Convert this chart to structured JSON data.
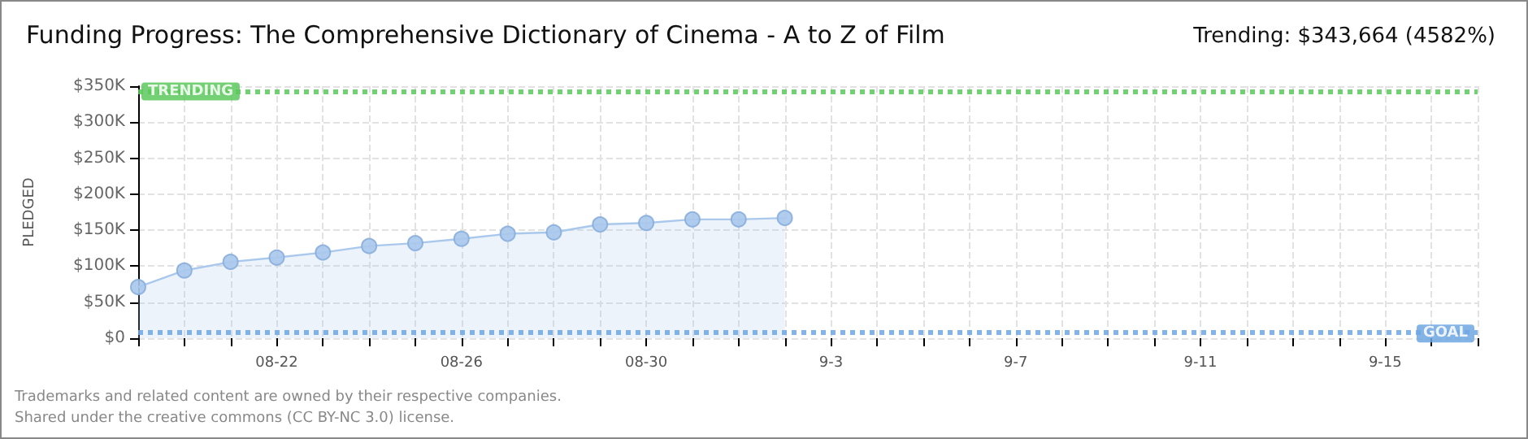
{
  "chart_data": {
    "type": "area",
    "title": "Funding Progress: The Comprehensive Dictionary of Cinema - A to Z of Film",
    "subtitle": "Trending: $343,664 (4582%)",
    "ylabel": "PLEDGED",
    "categories": [
      null,
      null,
      null,
      "08-22",
      null,
      null,
      null,
      "08-26",
      null,
      null,
      null,
      "08-30",
      null,
      null,
      null,
      "9-3",
      null,
      null,
      null,
      "9-7",
      null,
      null,
      null,
      "9-11",
      null,
      null,
      null,
      "9-15",
      null,
      null
    ],
    "series": [
      {
        "color": "#a9c8ec",
        "values": [
          71000,
          94000,
          106000,
          112000,
          119000,
          128000,
          132000,
          138000,
          145000,
          147000,
          158000,
          160000,
          165000,
          165000,
          167000,
          null,
          null,
          null,
          null,
          null,
          null,
          null,
          null,
          null,
          null,
          null,
          null,
          null,
          null,
          null
        ]
      }
    ],
    "ylim": [
      0,
      350000
    ],
    "yticks": [
      {
        "value": 0,
        "label": "$0"
      },
      {
        "value": 50000,
        "label": "$50K"
      },
      {
        "value": 100000,
        "label": "$100K"
      },
      {
        "value": 150000,
        "label": "$150K"
      },
      {
        "value": 200000,
        "label": "$200K"
      },
      {
        "value": 250000,
        "label": "$250K"
      },
      {
        "value": 300000,
        "label": "$300K"
      },
      {
        "value": 350000,
        "label": "$350K"
      }
    ],
    "ref_lines": [
      {
        "axis": "y",
        "value": 343664,
        "label": "TRENDING",
        "color": "#5cc85c",
        "line_style": "dotted"
      },
      {
        "axis": "y",
        "value": 7500,
        "label": "GOAL",
        "color": "#6fa6e2",
        "line_style": "dotted"
      }
    ],
    "grid": true,
    "marker": "circle",
    "line_style": "solid",
    "annotations": [
      "Trademarks and related content are owned by their respective companies.",
      "Shared under the creative commons (CC BY-NC 3.0) license."
    ]
  }
}
